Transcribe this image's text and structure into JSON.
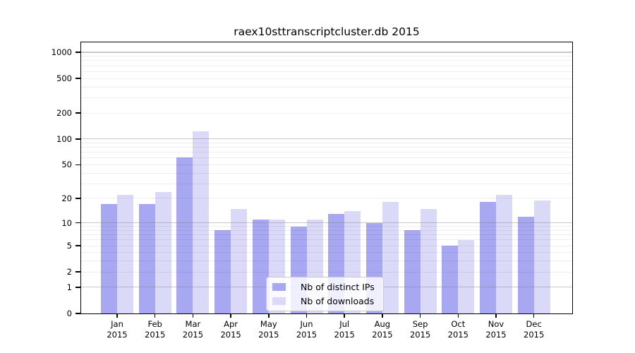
{
  "chart_data": {
    "type": "bar",
    "title": "raex10sttranscriptcluster.db 2015",
    "scale": "log1p",
    "grid": "on",
    "legend_position": "lower-center",
    "categories": [
      "Jan",
      "Feb",
      "Mar",
      "Apr",
      "May",
      "Jun",
      "Jul",
      "Aug",
      "Sep",
      "Oct",
      "Nov",
      "Dec"
    ],
    "year_label": "2015",
    "series": [
      {
        "name": "Nb of distinct IPs",
        "color": "#a8a8f2",
        "values": [
          17,
          17,
          61,
          8,
          11,
          9,
          13,
          10,
          8,
          5,
          18,
          12
        ]
      },
      {
        "name": "Nb of downloads",
        "color": "#dadaf8",
        "values": [
          22,
          24,
          123,
          15,
          11,
          11,
          14,
          18,
          15,
          6,
          22,
          19
        ]
      }
    ],
    "yticks": [
      0,
      1,
      2,
      5,
      10,
      20,
      50,
      100,
      200,
      500,
      1000
    ],
    "ylim": [
      0,
      1100
    ],
    "xlabel": "",
    "ylabel": ""
  }
}
